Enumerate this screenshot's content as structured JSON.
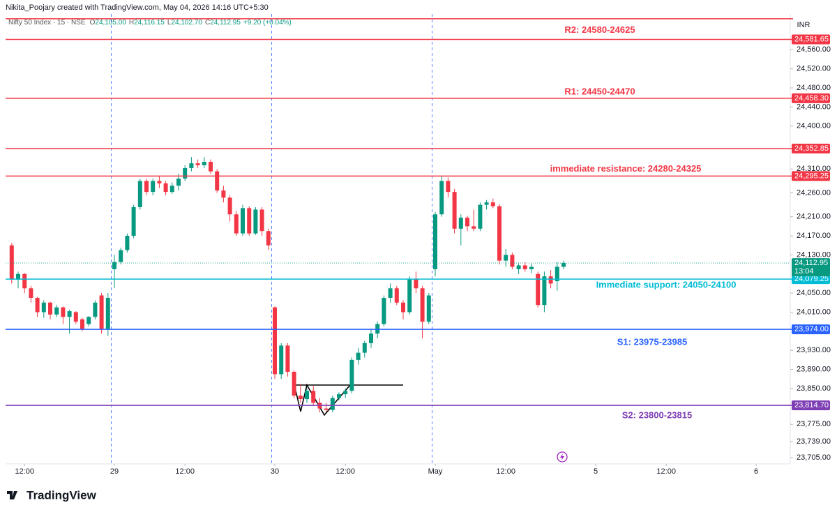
{
  "header": {
    "credit": "Nikita_Poojary created with TradingView.com, May 04, 2026 14:16 UTC+5:30",
    "symbol": "Nifty 50 Index · 15 · NSE",
    "ohlc": [
      {
        "key": "O",
        "value": "24,105.00"
      },
      {
        "key": "H",
        "value": "24,116.15"
      },
      {
        "key": "L",
        "value": "24,102.70"
      },
      {
        "key": "C",
        "value": "24,112.95"
      }
    ],
    "change": "+9.20 (+0.04%)"
  },
  "brand": "TradingView",
  "chart_data": {
    "type": "candlestick",
    "currency": "INR",
    "up_color": "#089981",
    "down_color": "#f23645",
    "ylim": [
      23692,
      24635
    ],
    "yticks": [
      {
        "value": 24560,
        "label": "24,560.00"
      },
      {
        "value": 24520,
        "label": "24,520.00"
      },
      {
        "value": 24480,
        "label": "24,480.00"
      },
      {
        "value": 24440,
        "label": "24,440.00"
      },
      {
        "value": 24400,
        "label": "24,400.00"
      },
      {
        "value": 24310,
        "label": "24,310.00"
      },
      {
        "value": 24260,
        "label": "24,260.00"
      },
      {
        "value": 24210,
        "label": "24,210.00"
      },
      {
        "value": 24170,
        "label": "24,170.00"
      },
      {
        "value": 24130,
        "label": "24,130.00"
      },
      {
        "value": 24050,
        "label": "24,050.00"
      },
      {
        "value": 24010,
        "label": "24,010.00"
      },
      {
        "value": 23930,
        "label": "23,930.00"
      },
      {
        "value": 23890,
        "label": "23,890.00"
      },
      {
        "value": 23850,
        "label": "23,850.00"
      },
      {
        "value": 23775,
        "label": "23,775.00"
      },
      {
        "value": 23739,
        "label": "23,739.00"
      },
      {
        "value": 23705,
        "label": "23,705.00"
      }
    ],
    "xticks": [
      {
        "value": 2,
        "label": "12:00"
      },
      {
        "value": 16,
        "label": "29"
      },
      {
        "value": 27,
        "label": "12:00"
      },
      {
        "value": 41,
        "label": "30"
      },
      {
        "value": 52,
        "label": "12:00"
      },
      {
        "value": 66,
        "label": "May"
      },
      {
        "value": 77,
        "label": "12:00"
      },
      {
        "value": 91,
        "label": "5"
      },
      {
        "value": 102,
        "label": "12:00"
      },
      {
        "value": 116,
        "label": "6"
      }
    ],
    "candles": [
      [
        24150,
        24155,
        24070,
        24078
      ],
      [
        24078,
        24095,
        24060,
        24090
      ],
      [
        24090,
        24092,
        24050,
        24060
      ],
      [
        24060,
        24065,
        24030,
        24040
      ],
      [
        24040,
        24042,
        24000,
        24010
      ],
      [
        24010,
        24035,
        23998,
        24030
      ],
      [
        24030,
        24032,
        23995,
        24005
      ],
      [
        24005,
        24025,
        24000,
        24020
      ],
      [
        24020,
        24022,
        23985,
        24000
      ],
      [
        24000,
        24015,
        23965,
        24012
      ],
      [
        24010,
        24012,
        23985,
        23990
      ],
      [
        23995,
        23998,
        23970,
        23975
      ],
      [
        23985,
        24002,
        23980,
        24000
      ],
      [
        24000,
        24035,
        23995,
        24030
      ],
      [
        24045,
        24050,
        23965,
        23975
      ],
      [
        23975,
        24050,
        23960,
        24040
      ],
      [
        24100,
        24130,
        24060,
        24115
      ],
      [
        24115,
        24145,
        24110,
        24140
      ],
      [
        24140,
        24175,
        24135,
        24170
      ],
      [
        24170,
        24235,
        24165,
        24230
      ],
      [
        24230,
        24290,
        24225,
        24285
      ],
      [
        24285,
        24290,
        24255,
        24262
      ],
      [
        24262,
        24290,
        24255,
        24285
      ],
      [
        24285,
        24295,
        24270,
        24280
      ],
      [
        24280,
        24285,
        24255,
        24262
      ],
      [
        24262,
        24282,
        24258,
        24275
      ],
      [
        24275,
        24300,
        24265,
        24290
      ],
      [
        24290,
        24318,
        24285,
        24312
      ],
      [
        24312,
        24335,
        24305,
        24322
      ],
      [
        24322,
        24330,
        24312,
        24318
      ],
      [
        24318,
        24335,
        24312,
        24325
      ],
      [
        24325,
        24330,
        24300,
        24305
      ],
      [
        24305,
        24310,
        24260,
        24265
      ],
      [
        24265,
        24275,
        24240,
        24250
      ],
      [
        24250,
        24255,
        24200,
        24215
      ],
      [
        24215,
        24222,
        24170,
        24175
      ],
      [
        24175,
        24235,
        24170,
        24228
      ],
      [
        24228,
        24232,
        24170,
        24175
      ],
      [
        24175,
        24230,
        24172,
        24225
      ],
      [
        24225,
        24230,
        24170,
        24180
      ],
      [
        24180,
        24185,
        24140,
        24150
      ],
      [
        24020,
        24022,
        23870,
        23880
      ],
      [
        23880,
        23945,
        23870,
        23940
      ],
      [
        23940,
        23945,
        23875,
        23885
      ],
      [
        23885,
        23888,
        23830,
        23835
      ],
      [
        23835,
        23860,
        23820,
        23828
      ],
      [
        23828,
        23850,
        23820,
        23845
      ],
      [
        23845,
        23855,
        23815,
        23820
      ],
      [
        23820,
        23830,
        23800,
        23808
      ],
      [
        23808,
        23820,
        23800,
        23805
      ],
      [
        23805,
        23835,
        23800,
        23830
      ],
      [
        23830,
        23842,
        23825,
        23838
      ],
      [
        23838,
        23850,
        23830,
        23845
      ],
      [
        23845,
        23915,
        23840,
        23910
      ],
      [
        23910,
        23935,
        23900,
        23925
      ],
      [
        23925,
        23950,
        23915,
        23945
      ],
      [
        23945,
        23975,
        23935,
        23965
      ],
      [
        23965,
        23990,
        23955,
        23985
      ],
      [
        23985,
        24045,
        23980,
        24040
      ],
      [
        24040,
        24070,
        24030,
        24060
      ],
      [
        24060,
        24065,
        24025,
        24030
      ],
      [
        24030,
        24035,
        23995,
        24010
      ],
      [
        24010,
        24085,
        24005,
        24080
      ],
      [
        24080,
        24095,
        24050,
        24060
      ],
      [
        24060,
        24065,
        23955,
        23990
      ],
      [
        23990,
        24050,
        23985,
        24045
      ],
      [
        24100,
        24220,
        24085,
        24215
      ],
      [
        24215,
        24295,
        24210,
        24285
      ],
      [
        24285,
        24292,
        24250,
        24262
      ],
      [
        24262,
        24268,
        24175,
        24185
      ],
      [
        24185,
        24215,
        24150,
        24208
      ],
      [
        24208,
        24212,
        24180,
        24190
      ],
      [
        24190,
        24225,
        24180,
        24185
      ],
      [
        24185,
        24240,
        24180,
        24235
      ],
      [
        24235,
        24245,
        24225,
        24240
      ],
      [
        24240,
        24248,
        24228,
        24232
      ],
      [
        24232,
        24236,
        24110,
        24118
      ],
      [
        24118,
        24142,
        24105,
        24130
      ],
      [
        24130,
        24135,
        24100,
        24105
      ],
      [
        24100,
        24112,
        24090,
        24108
      ],
      [
        24108,
        24115,
        24095,
        24100
      ],
      [
        24100,
        24112,
        24092,
        24105
      ],
      [
        24090,
        24095,
        24020,
        24025
      ],
      [
        24025,
        24095,
        24010,
        24085
      ],
      [
        24085,
        24098,
        24060,
        24070
      ],
      [
        24075,
        24115,
        24055,
        24105
      ],
      [
        24105,
        24118,
        24100,
        24113
      ]
    ],
    "levels": [
      {
        "value": 24625,
        "color": "#f23645"
      },
      {
        "value": 24581.65,
        "label": "24,581.65",
        "note": "R2: 24580-24625",
        "color": "#f23645"
      },
      {
        "value": 24458.3,
        "label": "24,458.30",
        "note": "R1: 24450-24470",
        "color": "#f23645"
      },
      {
        "value": 24352.85,
        "label": "24,352.85",
        "color": "#f23645"
      },
      {
        "value": 24295.25,
        "label": "24,295.25",
        "note": "immediate resistance: 24280-24325",
        "color": "#f23645"
      },
      {
        "value": 24079.25,
        "label": "24,079.25",
        "note": "Immediate support: 24050-24100",
        "color": "#00bcd4"
      },
      {
        "value": 23974,
        "label": "23,974.00",
        "note": "S1: 23975-23985",
        "color": "#2962ff"
      },
      {
        "value": 23814.7,
        "label": "23,814.70",
        "note": "S2: 23800-23815",
        "color": "#7e3fb5"
      }
    ],
    "last": {
      "value": 24112.95,
      "label": "24,112.95",
      "countdown": "13:04"
    }
  }
}
